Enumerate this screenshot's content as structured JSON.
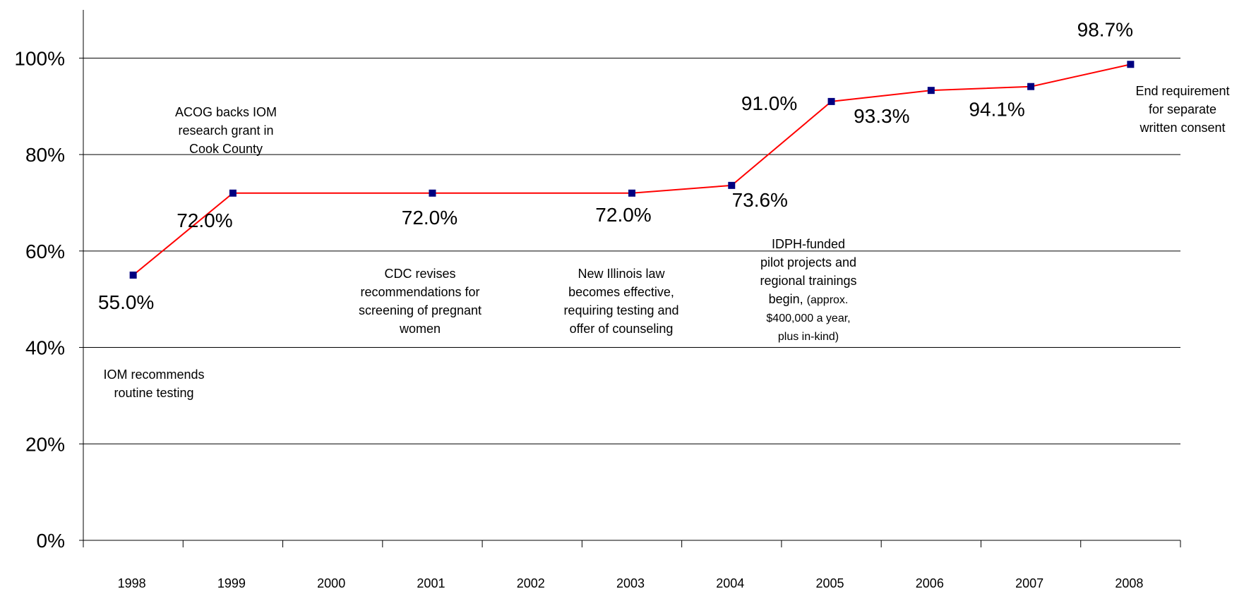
{
  "chart_data": {
    "type": "line",
    "categories": [
      "1998",
      "1999",
      "2000",
      "2001",
      "2002",
      "2003",
      "2004",
      "2005",
      "2006",
      "2007",
      "2008"
    ],
    "points": [
      {
        "x": "1998",
        "y": 55.0,
        "label": "55.0%"
      },
      {
        "x": "1999",
        "y": 72.0,
        "label": "72.0%"
      },
      {
        "x": "2001",
        "y": 72.0,
        "label": "72.0%"
      },
      {
        "x": "2003",
        "y": 72.0,
        "label": "72.0%"
      },
      {
        "x": "2004",
        "y": 73.6,
        "label": "73.6%"
      },
      {
        "x": "2005",
        "y": 91.0,
        "label": "91.0%"
      },
      {
        "x": "2006",
        "y": 93.3,
        "label": "93.3%"
      },
      {
        "x": "2007",
        "y": 94.1,
        "label": "94.1%"
      },
      {
        "x": "2008",
        "y": 98.7,
        "label": "98.7%"
      }
    ],
    "ylim": [
      0,
      110
    ],
    "yticks": [
      {
        "value": 0,
        "label": "0%"
      },
      {
        "value": 20,
        "label": "20%"
      },
      {
        "value": 40,
        "label": "40%"
      },
      {
        "value": 60,
        "label": "60%"
      },
      {
        "value": 80,
        "label": "80%"
      },
      {
        "value": 100,
        "label": "100%"
      }
    ],
    "grid": "horizontal",
    "line_color": "#ff0000",
    "marker_color": "#000080",
    "annotations": [
      {
        "id": "iom",
        "lines": [
          "IOM recommends",
          "routine testing"
        ]
      },
      {
        "id": "acog",
        "lines": [
          "ACOG backs IOM",
          "research grant in",
          "Cook County"
        ]
      },
      {
        "id": "cdc",
        "lines": [
          "CDC revises",
          "recommendations for",
          "screening of pregnant",
          "women"
        ]
      },
      {
        "id": "illinois",
        "lines": [
          "New Illinois law",
          "becomes effective,",
          "requiring testing and",
          "offer of counseling"
        ]
      },
      {
        "id": "idph",
        "lines": [
          "IDPH-funded",
          "pilot projects and",
          "regional trainings",
          "begin, "
        ],
        "small": [
          "(approx.",
          "$400,000 a year,",
          "plus in-kind)"
        ]
      },
      {
        "id": "consent",
        "lines": [
          "End requirement",
          "for separate",
          "written consent"
        ]
      }
    ]
  }
}
